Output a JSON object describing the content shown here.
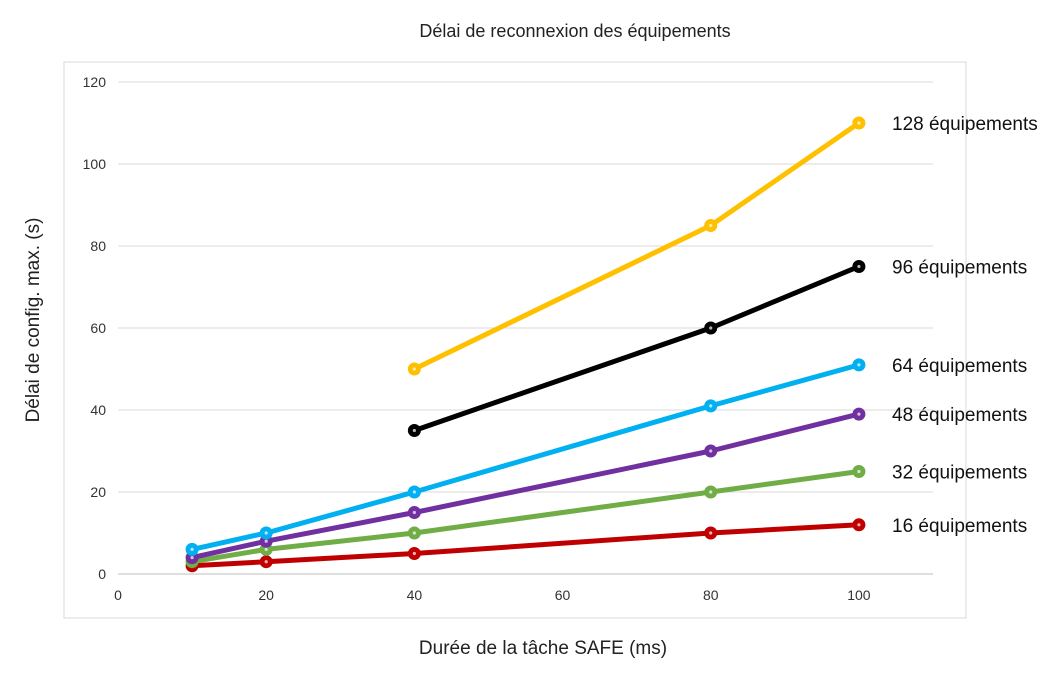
{
  "chart_data": {
    "type": "line",
    "title": "Délai de reconnexion des équipements",
    "xlabel": "Durée de la tâche SAFE (ms)",
    "ylabel": "Délai de config. max. (s)",
    "xlim": [
      0,
      110
    ],
    "ylim": [
      0,
      120
    ],
    "x_ticks": [
      0,
      20,
      40,
      60,
      80,
      100
    ],
    "y_ticks": [
      0,
      20,
      40,
      60,
      80,
      100,
      120
    ],
    "grid": "horizontal",
    "legend": "series labels at right end of lines",
    "series": [
      {
        "name": "16 équipements",
        "color": "#c00000",
        "x": [
          10,
          20,
          40,
          80,
          100
        ],
        "y": [
          2,
          3,
          5,
          10,
          12
        ]
      },
      {
        "name": "32 équipements",
        "color": "#70ad47",
        "x": [
          10,
          20,
          40,
          80,
          100
        ],
        "y": [
          3,
          6,
          10,
          20,
          25
        ]
      },
      {
        "name": "48 équipements",
        "color": "#7030a0",
        "x": [
          10,
          20,
          40,
          80,
          100
        ],
        "y": [
          4,
          8,
          15,
          30,
          39
        ]
      },
      {
        "name": "64 équipements",
        "color": "#00b0f0",
        "x": [
          10,
          20,
          40,
          80,
          100
        ],
        "y": [
          6,
          10,
          20,
          41,
          51
        ]
      },
      {
        "name": "96 équipements",
        "color": "#000000",
        "x": [
          40,
          80,
          100
        ],
        "y": [
          35,
          60,
          75
        ]
      },
      {
        "name": "128 équipements",
        "color": "#ffc000",
        "x": [
          40,
          80,
          100
        ],
        "y": [
          50,
          85,
          110
        ]
      }
    ]
  }
}
